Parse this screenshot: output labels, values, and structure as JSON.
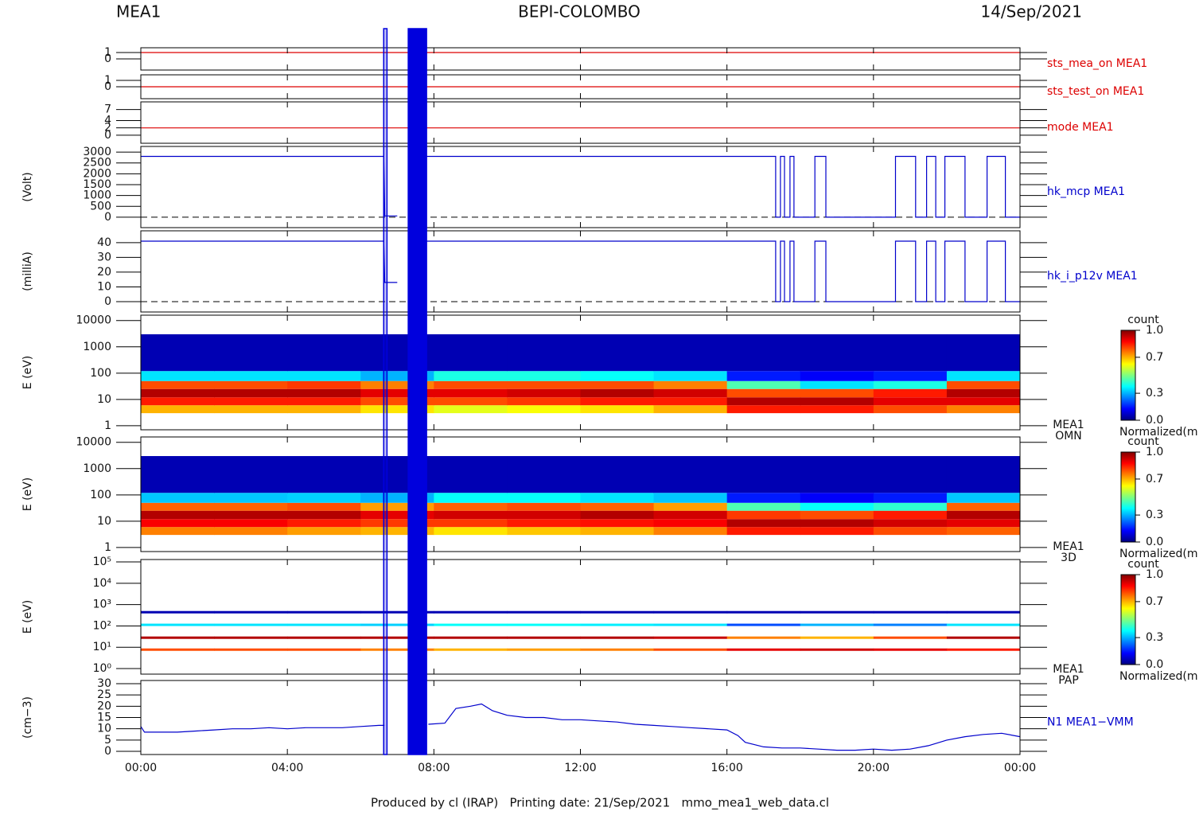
{
  "header": {
    "left": "MEA1",
    "center": "BEPI-COLOMBO",
    "right": "14/Sep/2021"
  },
  "footer": "Produced by cl (IRAP)   Printing date: 21/Sep/2021   mmo_mea1_web_data.cl",
  "x_axis": {
    "xlim": [
      0,
      24
    ],
    "xticks": [
      {
        "value": 0,
        "label": "00:00"
      },
      {
        "value": 4,
        "label": "04:00"
      },
      {
        "value": 8,
        "label": "08:00"
      },
      {
        "value": 12,
        "label": "12:00"
      },
      {
        "value": 16,
        "label": "16:00"
      },
      {
        "value": 20,
        "label": "20:00"
      },
      {
        "value": 24,
        "label": "00:00"
      }
    ]
  },
  "blue_intervals": [
    [
      6.63,
      6.72
    ],
    [
      7.3,
      7.8
    ]
  ],
  "interval_color": "#0000dd",
  "chart_data": [
    {
      "type": "line",
      "ylim": [
        -1.75,
        1.75
      ],
      "yticks": [
        0,
        1
      ],
      "x": [
        0,
        24
      ],
      "series": [
        {
          "name": "sts_mea_on MEA1",
          "color": "#dd0000",
          "values": [
            1,
            1
          ]
        }
      ]
    },
    {
      "type": "line",
      "ylim": [
        -1.875,
        1.875
      ],
      "yticks": [
        0,
        1
      ],
      "x": [
        0,
        24
      ],
      "series": [
        {
          "name": "sts_test_on MEA1",
          "color": "#dd0000",
          "values": [
            0,
            0
          ]
        }
      ]
    },
    {
      "type": "line",
      "ylim": [
        -2.2,
        9.1
      ],
      "yticks": [
        0,
        2,
        4,
        7
      ],
      "x": [
        0,
        24
      ],
      "series": [
        {
          "name": "mode MEA1",
          "color": "#dd0000",
          "values": [
            2,
            2
          ]
        }
      ]
    },
    {
      "type": "line",
      "ylabel": "(Volt)",
      "ylim": [
        -480,
        3260
      ],
      "yticks": [
        0,
        500,
        1000,
        1500,
        2000,
        2500,
        3000
      ],
      "reference_line": 0,
      "x": [
        0,
        6.63,
        6.66,
        7.0,
        7.3,
        7.8,
        17.33,
        17.33,
        17.46,
        17.46,
        17.57,
        17.57,
        17.72,
        17.72,
        17.83,
        17.83,
        18.4,
        18.4,
        18.7,
        18.7,
        20.6,
        20.6,
        21.15,
        21.15,
        21.45,
        21.45,
        21.7,
        21.7,
        21.95,
        21.95,
        22.5,
        22.5,
        23.1,
        23.1,
        23.6,
        23.6,
        24
      ],
      "series": [
        {
          "name": "hk_mcp MEA1",
          "color": "#0000cc",
          "values": [
            2800,
            2800,
            60,
            60,
            null,
            2800,
            2800,
            0,
            0,
            2800,
            2800,
            0,
            0,
            2800,
            2800,
            0,
            0,
            2800,
            2800,
            0,
            0,
            2800,
            2800,
            0,
            0,
            2800,
            2800,
            0,
            0,
            2800,
            2800,
            0,
            0,
            2800,
            2800,
            0,
            0
          ]
        }
      ]
    },
    {
      "type": "line",
      "ylabel": "(milliA)",
      "ylim": [
        -7,
        48
      ],
      "yticks": [
        0,
        10,
        20,
        30,
        40
      ],
      "reference_line": 0,
      "x": [
        0,
        6.63,
        6.66,
        7.0,
        7.3,
        7.8,
        17.33,
        17.33,
        17.46,
        17.46,
        17.57,
        17.57,
        17.72,
        17.72,
        17.83,
        17.83,
        18.4,
        18.4,
        18.7,
        18.7,
        20.6,
        20.6,
        21.15,
        21.15,
        21.45,
        21.45,
        21.7,
        21.7,
        21.95,
        21.95,
        22.5,
        22.5,
        23.1,
        23.1,
        23.6,
        23.6,
        24
      ],
      "series": [
        {
          "name": "hk_i_p12v MEA1",
          "color": "#0000cc",
          "values": [
            41,
            41,
            13,
            13,
            null,
            41,
            41,
            0,
            0,
            41,
            41,
            0,
            0,
            41,
            41,
            0,
            0,
            41,
            41,
            0,
            0,
            41,
            41,
            0,
            0,
            41,
            41,
            0,
            0,
            41,
            41,
            0,
            0,
            41,
            41,
            0,
            0
          ]
        }
      ]
    },
    {
      "type": "heatmap",
      "ylabel": "E (eV)",
      "log_y": true,
      "ylim": [
        0.7,
        16000
      ],
      "yticks": [
        1,
        10,
        100,
        1000,
        10000
      ],
      "label_lines": [
        "MEA1",
        "OMN"
      ],
      "x_bins": [
        0,
        2,
        4,
        6,
        8,
        10,
        12,
        14,
        16,
        18,
        20,
        22,
        24
      ],
      "y_bins": [
        3,
        6,
        12,
        25,
        50,
        120,
        3000
      ],
      "values": [
        [
          0.7,
          0.7,
          0.7,
          0.65,
          0.6,
          0.62,
          0.65,
          0.7,
          0.85,
          0.85,
          0.8,
          0.75
        ],
        [
          0.85,
          0.85,
          0.85,
          0.8,
          0.8,
          0.82,
          0.85,
          0.85,
          0.95,
          0.95,
          0.9,
          0.9
        ],
        [
          0.95,
          0.95,
          0.95,
          0.9,
          0.9,
          0.92,
          0.95,
          0.92,
          0.8,
          0.8,
          0.85,
          0.95
        ],
        [
          0.8,
          0.8,
          0.82,
          0.75,
          0.8,
          0.8,
          0.8,
          0.75,
          0.45,
          0.35,
          0.4,
          0.8
        ],
        [
          0.35,
          0.35,
          0.35,
          0.3,
          0.4,
          0.4,
          0.38,
          0.35,
          0.15,
          0.12,
          0.15,
          0.35
        ],
        [
          0.05,
          0.05,
          0.05,
          0.05,
          0.05,
          0.05,
          0.05,
          0.05,
          0.05,
          0.05,
          0.05,
          0.05
        ]
      ],
      "colorbar": {
        "title": "count",
        "label": "Normalized(m",
        "lim": [
          0,
          1
        ],
        "ticks": [
          {
            "value": 0,
            "label": "0.0"
          },
          0.3,
          0.7,
          {
            "value": 1,
            "label": "1.0"
          }
        ]
      }
    },
    {
      "type": "heatmap",
      "ylabel": "E (eV)",
      "log_y": true,
      "ylim": [
        0.7,
        16000
      ],
      "yticks": [
        1,
        10,
        100,
        1000,
        10000
      ],
      "label_lines": [
        "MEA1",
        "3D"
      ],
      "x_bins": [
        0,
        2,
        4,
        6,
        8,
        10,
        12,
        14,
        16,
        18,
        20,
        22,
        24
      ],
      "y_bins": [
        3,
        6,
        12,
        25,
        50,
        120,
        3000
      ],
      "values": [
        [
          0.75,
          0.75,
          0.72,
          0.7,
          0.65,
          0.68,
          0.7,
          0.75,
          0.85,
          0.85,
          0.8,
          0.78
        ],
        [
          0.88,
          0.88,
          0.85,
          0.82,
          0.82,
          0.85,
          0.86,
          0.88,
          0.95,
          0.95,
          0.92,
          0.9
        ],
        [
          0.95,
          0.95,
          0.95,
          0.9,
          0.92,
          0.92,
          0.95,
          0.92,
          0.82,
          0.8,
          0.85,
          0.95
        ],
        [
          0.78,
          0.78,
          0.8,
          0.72,
          0.78,
          0.8,
          0.78,
          0.72,
          0.45,
          0.38,
          0.42,
          0.78
        ],
        [
          0.32,
          0.32,
          0.33,
          0.3,
          0.38,
          0.38,
          0.35,
          0.32,
          0.15,
          0.12,
          0.15,
          0.32
        ],
        [
          0.05,
          0.05,
          0.05,
          0.05,
          0.05,
          0.05,
          0.05,
          0.05,
          0.05,
          0.05,
          0.05,
          0.05
        ]
      ],
      "colorbar": {
        "title": "count",
        "label": "Normalized(m",
        "lim": [
          0,
          1
        ],
        "ticks": [
          {
            "value": 0,
            "label": "0.0"
          },
          0.3,
          0.7,
          {
            "value": 1,
            "label": "1.0"
          }
        ]
      }
    },
    {
      "type": "heatmap",
      "ylabel": "E (eV)",
      "log_y": true,
      "ylim": [
        0.55,
        130000
      ],
      "yticks": [
        {
          "value": 1,
          "label": "10⁰"
        },
        {
          "value": 10,
          "label": "10¹"
        },
        {
          "value": 100,
          "label": "10²"
        },
        {
          "value": 1000,
          "label": "10³"
        },
        {
          "value": 10000,
          "label": "10⁴"
        },
        {
          "value": 100000,
          "label": "10⁵"
        }
      ],
      "label_lines": [
        "MEA1",
        "PAP"
      ],
      "x_bins": [
        0,
        2,
        4,
        6,
        8,
        10,
        12,
        14,
        16,
        18,
        20,
        22,
        24
      ],
      "y_bands": [
        [
          7,
          8.8
        ],
        [
          27,
          32
        ],
        [
          108,
          128
        ],
        [
          420,
          500
        ]
      ],
      "values": [
        [
          0.8,
          0.8,
          0.8,
          0.75,
          0.7,
          0.72,
          0.75,
          0.8,
          0.9,
          0.92,
          0.9,
          0.85
        ],
        [
          0.95,
          0.95,
          0.95,
          0.95,
          0.95,
          0.95,
          0.95,
          0.93,
          0.75,
          0.7,
          0.8,
          0.95
        ],
        [
          0.35,
          0.35,
          0.35,
          0.33,
          0.38,
          0.38,
          0.36,
          0.35,
          0.2,
          0.3,
          0.25,
          0.35
        ],
        [
          0.05,
          0.05,
          0.05,
          0.05,
          0.05,
          0.05,
          0.05,
          0.05,
          0.05,
          0.05,
          0.05,
          0.05
        ]
      ],
      "colorbar": {
        "title": "count",
        "label": "Normalized(m",
        "lim": [
          0,
          1
        ],
        "ticks": [
          {
            "value": 0,
            "label": "0.0"
          },
          0.3,
          0.7,
          {
            "value": 1,
            "label": "1.0"
          }
        ]
      }
    },
    {
      "type": "line",
      "ylabel": "(cm−3)",
      "ylim": [
        -1.4,
        31.4
      ],
      "yticks": [
        0,
        5,
        10,
        15,
        20,
        25,
        30
      ],
      "x": [
        0,
        0.1,
        0.5,
        1,
        1.5,
        2,
        2.5,
        3,
        3.5,
        4,
        4.5,
        5,
        5.5,
        6,
        6.5,
        6.65,
        6.7,
        7.85,
        8.3,
        8.6,
        9,
        9.3,
        9.6,
        10,
        10.5,
        11,
        11.5,
        12,
        12.5,
        13,
        13.5,
        14,
        14.5,
        15,
        15.5,
        16,
        16.3,
        16.5,
        17,
        17.5,
        18,
        18.5,
        19,
        19.5,
        20,
        20.5,
        21,
        21.5,
        22,
        22.5,
        23,
        23.5,
        24
      ],
      "series": [
        {
          "name": "N1 MEA1−VMM",
          "color": "#0000cc",
          "values": [
            11,
            8.5,
            8.5,
            8.5,
            9,
            9.5,
            10,
            10,
            10.5,
            10,
            10.5,
            10.5,
            10.5,
            11,
            11.5,
            11.5,
            null,
            12,
            12.5,
            19,
            20,
            21,
            18,
            16,
            15,
            15,
            14,
            14,
            13.5,
            13,
            12,
            11.5,
            11,
            10.5,
            10,
            9.5,
            7,
            4,
            2,
            1.5,
            1.5,
            1,
            0.5,
            0.5,
            1,
            0.5,
            1,
            2.5,
            5,
            6.5,
            7.5,
            8,
            6.5
          ]
        }
      ]
    }
  ]
}
